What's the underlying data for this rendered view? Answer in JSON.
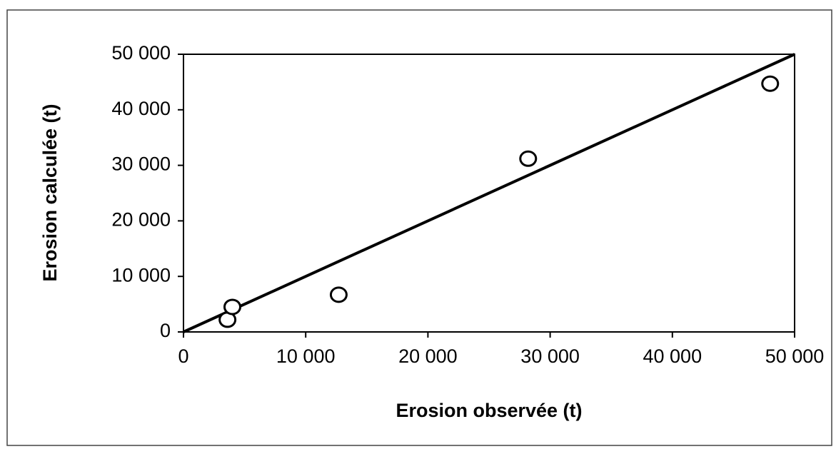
{
  "chart_data": {
    "type": "scatter",
    "x_label": "Erosion observée (t)",
    "y_label": "Erosion calculée (t)",
    "points": {
      "x": [
        3600,
        4000,
        12700,
        28200,
        48000
      ],
      "y": [
        2200,
        4500,
        6700,
        31200,
        44700
      ],
      "color": "#000000"
    },
    "reference_line": {
      "x": [
        0,
        50000
      ],
      "y": [
        0,
        50000
      ],
      "color": "#000000"
    },
    "xlim": [
      0,
      50000
    ],
    "ylim": [
      0,
      50000
    ],
    "xticks": [
      0,
      {
        "value": 10000,
        "label": "10 000"
      },
      {
        "value": 20000,
        "label": "20 000"
      },
      {
        "value": 30000,
        "label": "30 000"
      },
      {
        "value": 40000,
        "label": "40 000"
      },
      {
        "value": 50000,
        "label": "50 000"
      }
    ],
    "yticks": [
      0,
      {
        "value": 10000,
        "label": "10 000"
      },
      {
        "value": 20000,
        "label": "20 000"
      },
      {
        "value": 30000,
        "label": "30 000"
      },
      {
        "value": 40000,
        "label": "40 000"
      },
      {
        "value": 50000,
        "label": "50 000"
      }
    ],
    "grid": false
  }
}
